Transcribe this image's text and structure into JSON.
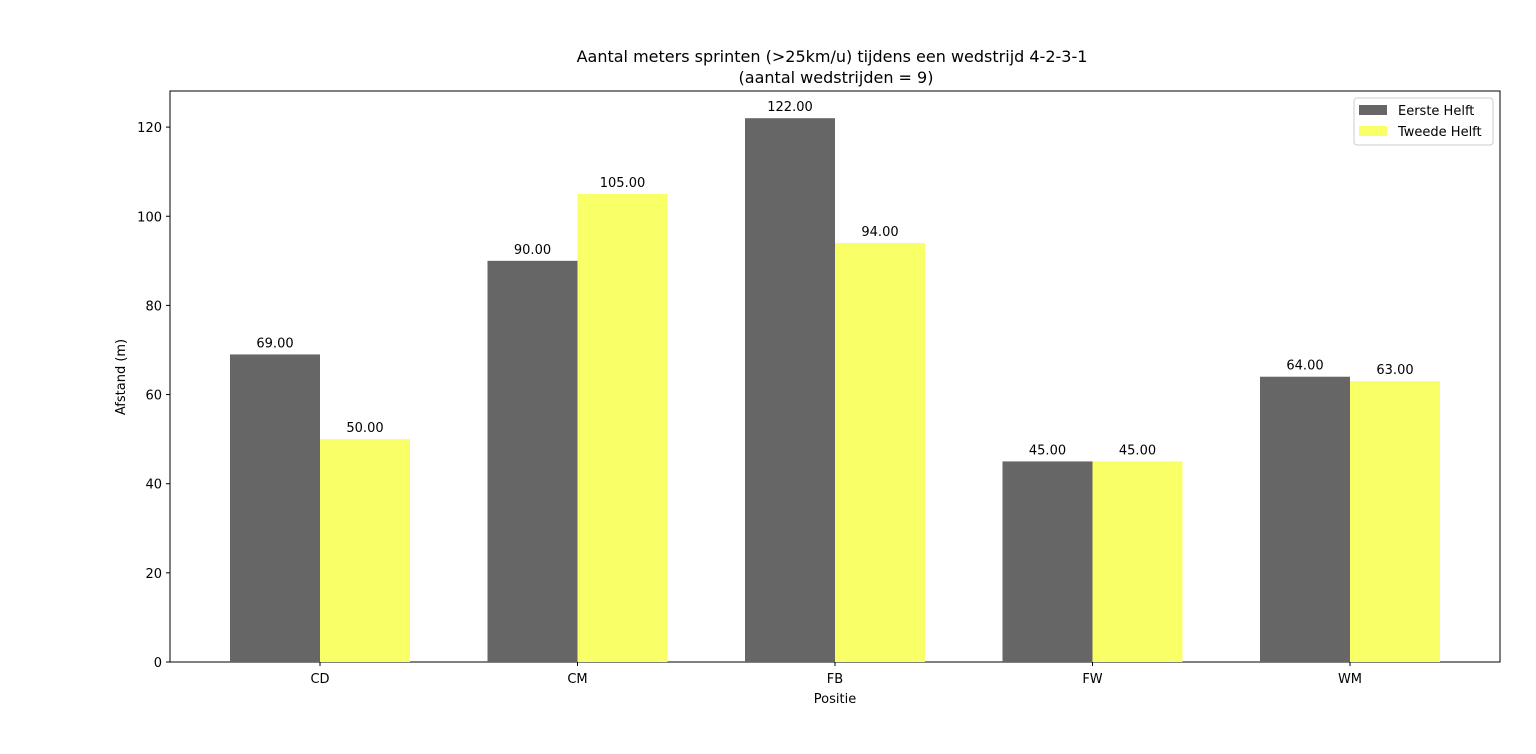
{
  "chart_data": {
    "type": "bar",
    "title": "Aantal meters sprinten (>25km/u) tijdens een wedstrijd 4-2-3-1",
    "subtitle": "(aantal wedstrijden = 9)",
    "xlabel": "Positie",
    "ylabel": "Afstand (m)",
    "categories": [
      "CD",
      "CM",
      "FB",
      "FW",
      "WM"
    ],
    "series": [
      {
        "name": "Eerste Helft",
        "values": [
          69,
          90,
          122,
          45,
          64
        ],
        "color": "#666666"
      },
      {
        "name": "Tweede Helft",
        "values": [
          50,
          105,
          94,
          45,
          63
        ],
        "color": "#f9ff66"
      }
    ],
    "ylim": [
      0,
      128.1
    ],
    "yticks": [
      0,
      20,
      40,
      60,
      80,
      100,
      120
    ],
    "value_format_decimals": 2,
    "legend_position": "top-right",
    "grid": false
  }
}
